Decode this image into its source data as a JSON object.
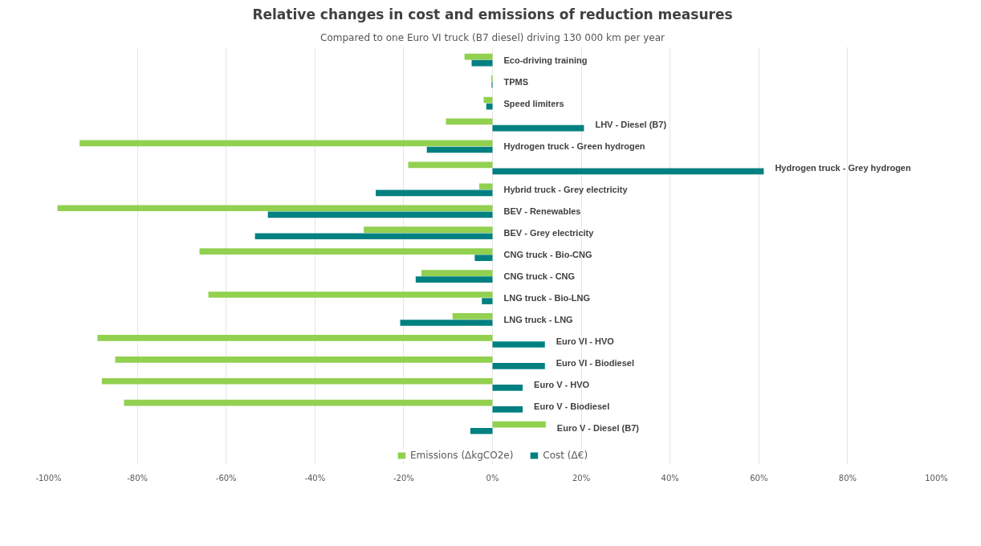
{
  "chart_data": {
    "type": "bar",
    "orientation": "horizontal",
    "title": "Relative changes in cost and emissions of reduction measures",
    "subtitle": "Compared to one Euro VI truck (B7 diesel) driving 130 000 km per year",
    "categories": [
      "Eco-driving training",
      "TPMS",
      "Speed limiters",
      "LHV - Diesel (B7)",
      "Hydrogen truck - Green hydrogen",
      "Hydrogen truck - Grey hydrogen",
      "Hybrid truck - Grey electricity",
      "BEV - Renewables",
      "BEV - Grey electricity",
      "CNG truck - Bio-CNG",
      "CNG truck - CNG",
      "LNG truck - Bio-LNG",
      "LNG truck - LNG",
      "Euro VI - HVO",
      "Euro VI - Biodiesel",
      "Euro V - HVO",
      "Euro V - Biodiesel",
      "Euro V - Diesel (B7)"
    ],
    "series": [
      {
        "name": "Emissions (ΔkgCO2e)",
        "color": "#92d050",
        "values": [
          -6.3,
          -0.3,
          -2,
          -10.5,
          -93,
          -19,
          -3,
          -98,
          -29,
          -66,
          -16,
          -64,
          -9,
          -89,
          -85,
          -88,
          -83,
          12
        ]
      },
      {
        "name": "Cost (Δ€)",
        "color": "#008080",
        "values": [
          -4.7,
          -0.2,
          -1.4,
          20.6,
          -14.8,
          61.1,
          -26.3,
          -50.6,
          -53.5,
          -4,
          -17.3,
          -2.4,
          -20.8,
          11.8,
          11.8,
          6.8,
          6.8,
          -5
        ]
      }
    ],
    "xlim": [
      -100,
      100
    ],
    "xticks": [
      {
        "value": -100,
        "label": "-100%"
      },
      {
        "value": -80,
        "label": "-80%"
      },
      {
        "value": -60,
        "label": "-60%"
      },
      {
        "value": -40,
        "label": "-40%"
      },
      {
        "value": -20,
        "label": "-20%"
      },
      {
        "value": 0,
        "label": "0%"
      },
      {
        "value": 20,
        "label": "20%"
      },
      {
        "value": 40,
        "label": "40%"
      },
      {
        "value": 60,
        "label": "60%"
      },
      {
        "value": 80,
        "label": "80%"
      },
      {
        "value": 100,
        "label": "100%"
      }
    ],
    "grid": "x",
    "legend": "bottom"
  }
}
